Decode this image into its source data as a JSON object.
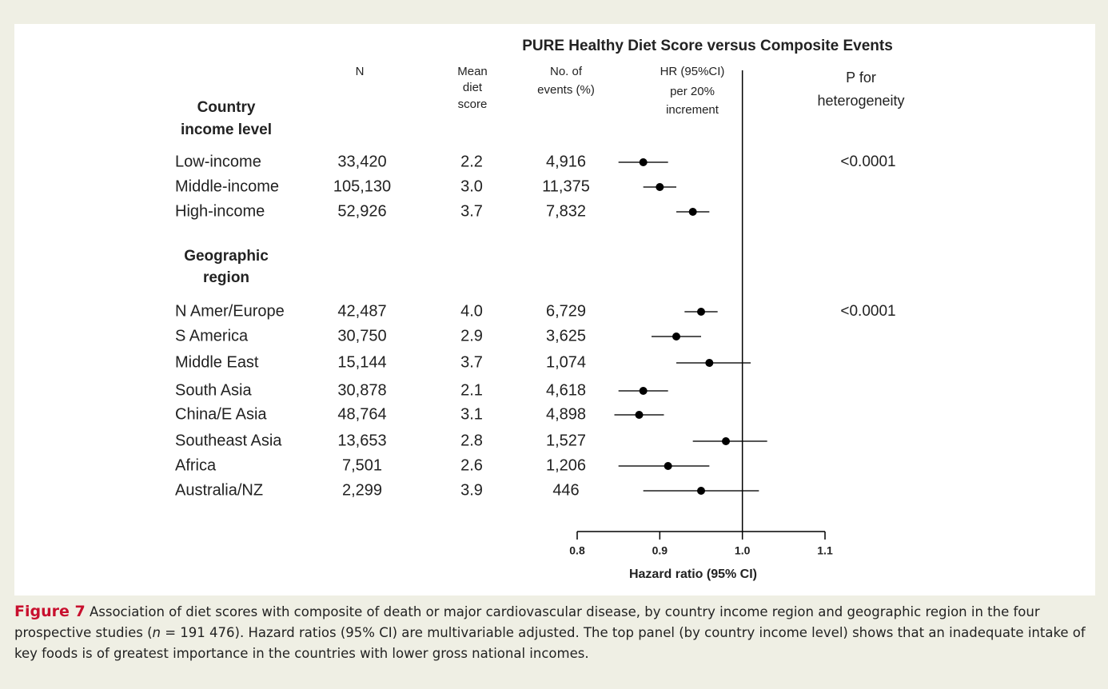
{
  "chart_data": {
    "type": "forest",
    "title": "PURE Healthy Diet Score versus Composite Events",
    "column_headers": {
      "n": [
        "N"
      ],
      "mean": [
        "Mean",
        "diet",
        "score"
      ],
      "events": [
        "No. of",
        "events (%)"
      ],
      "hr": [
        "HR (95%CI)",
        "per 20%",
        "increment"
      ],
      "p": [
        "P for",
        "heterogeneity"
      ]
    },
    "groups": [
      {
        "title_lines": [
          "Country",
          "income level"
        ],
        "p_heterogeneity": "<0.0001",
        "rows": [
          {
            "label": "Low-income",
            "n": "33,420",
            "mean": "2.2",
            "events": "4,916",
            "hr": 0.88,
            "lo": 0.85,
            "hi": 0.91
          },
          {
            "label": "Middle-income",
            "n": "105,130",
            "mean": "3.0",
            "events": "11,375",
            "hr": 0.9,
            "lo": 0.88,
            "hi": 0.92
          },
          {
            "label": "High-income",
            "n": "52,926",
            "mean": "3.7",
            "events": "7,832",
            "hr": 0.94,
            "lo": 0.92,
            "hi": 0.96
          }
        ]
      },
      {
        "title_lines": [
          "Geographic",
          "region"
        ],
        "p_heterogeneity": "<0.0001",
        "rows": [
          {
            "label": "N Amer/Europe",
            "n": "42,487",
            "mean": "4.0",
            "events": "6,729",
            "hr": 0.95,
            "lo": 0.93,
            "hi": 0.97
          },
          {
            "label": "S America",
            "n": "30,750",
            "mean": "2.9",
            "events": "3,625",
            "hr": 0.92,
            "lo": 0.89,
            "hi": 0.95
          },
          {
            "label": "Middle East",
            "n": "15,144",
            "mean": "3.7",
            "events": "1,074",
            "hr": 0.96,
            "lo": 0.92,
            "hi": 1.01
          },
          {
            "label": "South Asia",
            "n": "30,878",
            "mean": "2.1",
            "events": "4,618",
            "hr": 0.88,
            "lo": 0.85,
            "hi": 0.91
          },
          {
            "label": "China/E Asia",
            "n": "48,764",
            "mean": "3.1",
            "events": "4,898",
            "hr": 0.875,
            "lo": 0.845,
            "hi": 0.905
          },
          {
            "label": "Southeast Asia",
            "n": "13,653",
            "mean": "2.8",
            "events": "1,527",
            "hr": 0.98,
            "lo": 0.94,
            "hi": 1.03
          },
          {
            "label": "Africa",
            "n": "7,501",
            "mean": "2.6",
            "events": "1,206",
            "hr": 0.91,
            "lo": 0.85,
            "hi": 0.96
          },
          {
            "label": "Australia/NZ",
            "n": "2,299",
            "mean": "3.9",
            "events": "446",
            "hr": 0.95,
            "lo": 0.88,
            "hi": 1.02
          }
        ]
      }
    ],
    "reference": {
      "value": 1,
      "label": "1.0"
    },
    "xlim": [
      0.8,
      1.1
    ],
    "xticks": [
      0.8,
      0.9,
      {
        "value": 1,
        "label": "1.0"
      },
      1.1
    ],
    "xlabel": "Hazard ratio (95% CI)",
    "point_color": "#000000",
    "ci_color": "#555555"
  },
  "caption": {
    "label": "Figure 7",
    "parts": [
      "Association of diet scores with composite of death or major cardiovascular disease, by country income region and geographic region in the four prospective studies (",
      "n",
      " = 191 476). Hazard ratios (95% CI) are multivariable adjusted. The top panel (by country income level) shows that an inadequate intake of key foods is of greatest importance in the countries with lower gross national incomes."
    ]
  }
}
